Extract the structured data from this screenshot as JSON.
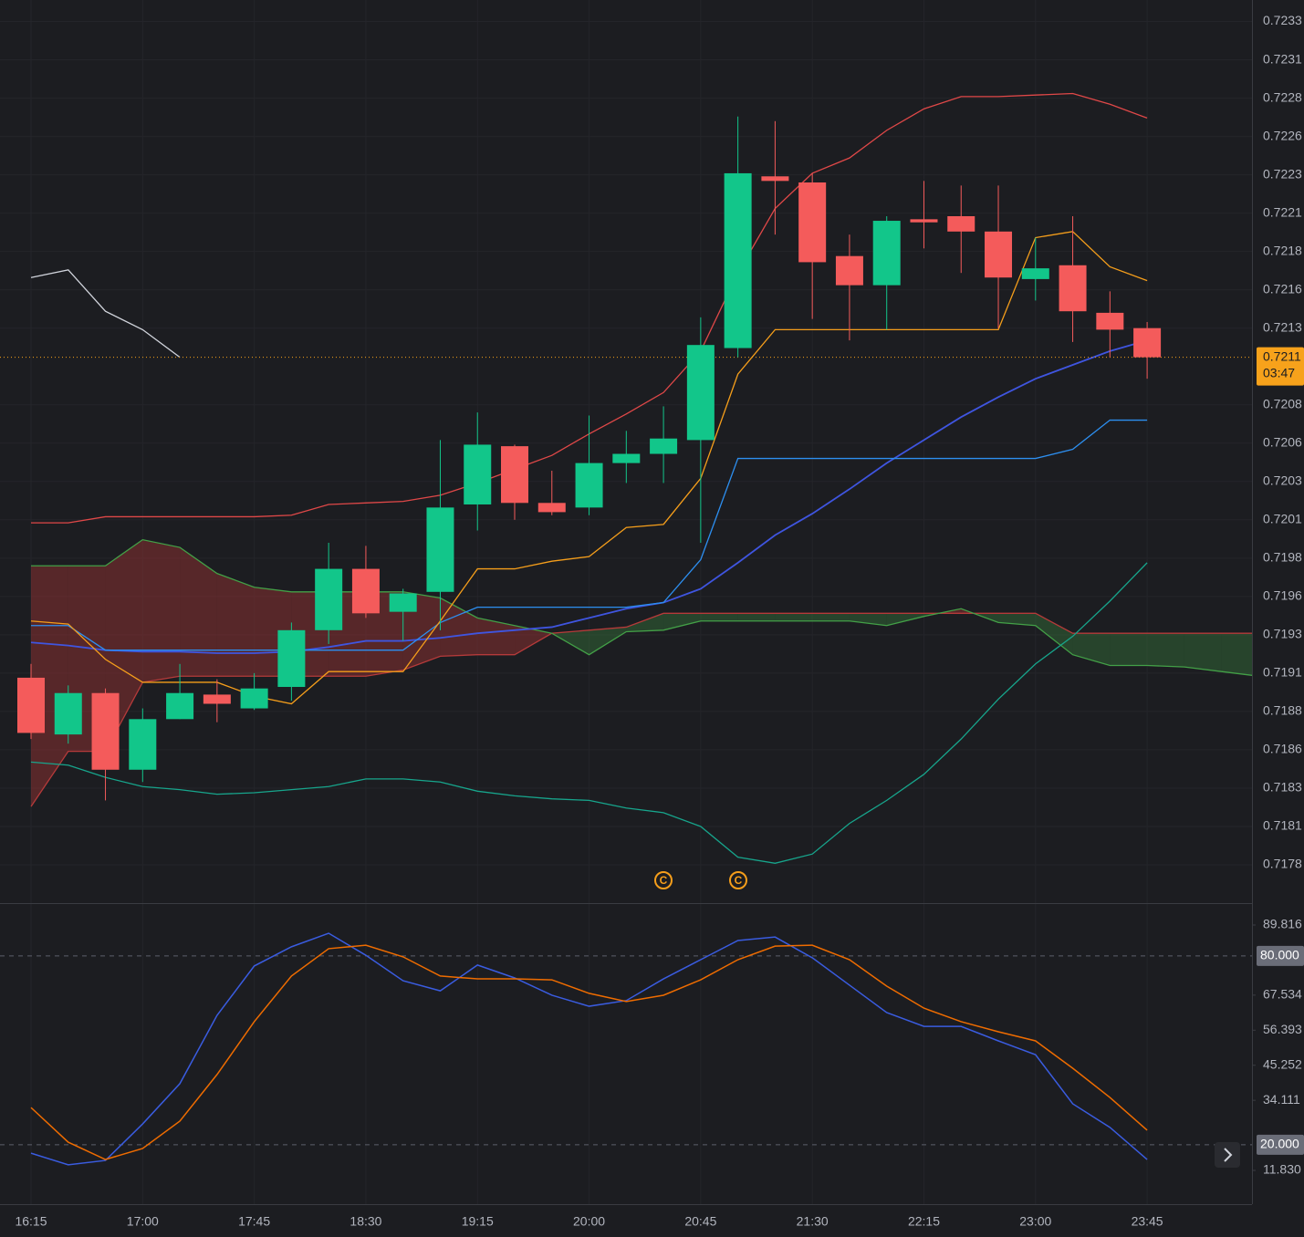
{
  "chart_data": [
    {
      "type": "candlestick",
      "categories": [
        "16:15",
        null,
        null,
        "17:00",
        null,
        null,
        "17:45",
        null,
        null,
        "18:30",
        null,
        null,
        "19:15",
        null,
        null,
        "20:00",
        null,
        null,
        "20:45",
        null,
        null,
        "21:30",
        null,
        null,
        "22:15",
        null,
        null,
        "23:00",
        null,
        null,
        "23:45",
        null,
        null,
        null
      ],
      "open": [
        0.71902,
        0.71865,
        0.71892,
        0.71842,
        0.71875,
        0.71891,
        0.71882,
        0.71896,
        0.71933,
        0.71973,
        0.71945,
        0.71958,
        0.72015,
        0.72053,
        0.72016,
        0.72013,
        0.72042,
        0.72048,
        0.72057,
        0.72117,
        0.72229,
        0.72225,
        0.72177,
        0.72158,
        0.72201,
        0.72203,
        0.72193,
        0.72162,
        0.72171,
        0.7214,
        0.7213,
        null,
        null,
        null
      ],
      "high": [
        0.71911,
        0.71897,
        0.71895,
        0.71882,
        0.71911,
        0.71901,
        0.71905,
        0.71938,
        0.7199,
        0.71988,
        0.7196,
        0.72057,
        0.72075,
        0.72054,
        0.72037,
        0.72073,
        0.72063,
        0.72079,
        0.72137,
        0.72268,
        0.72265,
        0.72231,
        0.72191,
        0.72203,
        0.72226,
        0.72223,
        0.72223,
        0.72189,
        0.72203,
        0.72154,
        0.72134,
        null,
        null,
        null
      ],
      "low": [
        0.71862,
        0.71859,
        0.71822,
        0.71834,
        0.71875,
        0.71873,
        0.71881,
        0.71887,
        0.71924,
        0.71941,
        0.71926,
        0.71933,
        0.71998,
        0.72005,
        0.72008,
        0.72008,
        0.72029,
        0.72029,
        0.7199,
        0.72111,
        0.72191,
        0.72136,
        0.72122,
        0.72129,
        0.72182,
        0.72166,
        0.7213,
        0.72148,
        0.72121,
        0.72111,
        0.72097,
        null,
        null,
        null
      ],
      "close": [
        0.71866,
        0.71892,
        0.71842,
        0.71875,
        0.71892,
        0.71885,
        0.71895,
        0.71933,
        0.71973,
        0.71944,
        0.71957,
        0.72013,
        0.72054,
        0.72016,
        0.7201,
        0.72042,
        0.72048,
        0.72058,
        0.72119,
        0.72231,
        0.72226,
        0.72173,
        0.72158,
        0.722,
        0.72199,
        0.72193,
        0.72163,
        0.72169,
        0.72141,
        0.72129,
        0.72111,
        null,
        null,
        null
      ],
      "up_color": "#12c68a",
      "down_color": "#f45b5b",
      "cloud": {
        "span_a": {
          "color": "#b53a3a",
          "values": [
            0.71818,
            0.71854,
            0.71854,
            0.71899,
            0.71903,
            0.71903,
            0.71903,
            0.71903,
            0.71903,
            0.71903,
            0.71907,
            0.71916,
            0.71917,
            0.71917,
            0.71931,
            0.71933,
            0.71935,
            0.71944,
            0.71944,
            0.71944,
            0.71944,
            0.71944,
            0.71944,
            0.71944,
            0.71944,
            0.71944,
            0.71944,
            0.71944,
            0.71931,
            0.71931,
            0.71931,
            0.71931,
            0.71931,
            0.71931
          ]
        },
        "span_b": {
          "color": "#43a047",
          "values": [
            0.71975,
            0.71975,
            0.71975,
            0.71992,
            0.71987,
            0.7197,
            0.71961,
            0.71958,
            0.71958,
            0.71958,
            0.71958,
            0.71954,
            0.71941,
            0.71936,
            0.71931,
            0.71917,
            0.71932,
            0.71933,
            0.71939,
            0.71939,
            0.71939,
            0.71939,
            0.71939,
            0.71936,
            0.71942,
            0.71947,
            0.71938,
            0.71936,
            0.71917,
            0.7191,
            0.7191,
            0.71909,
            0.71906,
            0.71903
          ]
        },
        "up_fill": "rgba(67,160,71,0.3)",
        "down_fill": "rgba(183,56,56,0.38)"
      },
      "series": [
        {
          "color": "#e04848",
          "values": [
            0.72003,
            0.72003,
            0.72007,
            0.72007,
            0.72007,
            0.72007,
            0.72007,
            0.72008,
            0.72015,
            0.72016,
            0.72017,
            0.72021,
            0.72029,
            0.72038,
            0.72047,
            0.72061,
            0.72074,
            0.72088,
            0.72115,
            0.72166,
            0.72208,
            0.72231,
            0.72241,
            0.72259,
            0.72273,
            0.72281,
            0.72281,
            0.72282,
            0.72283,
            0.72276,
            0.72267,
            null,
            null,
            null
          ]
        },
        {
          "color": "#17a58c",
          "values": [
            0.71847,
            0.71845,
            0.71837,
            0.71831,
            0.71829,
            0.71826,
            0.71827,
            0.71829,
            0.71831,
            0.71836,
            0.71836,
            0.71834,
            0.71828,
            0.71825,
            0.71823,
            0.71822,
            0.71817,
            0.71814,
            0.71805,
            0.71785,
            0.71781,
            0.71787,
            0.71807,
            0.71822,
            0.71839,
            0.71862,
            0.71888,
            0.71911,
            0.71929,
            0.71952,
            0.71977,
            null,
            null,
            null
          ]
        },
        {
          "color": "#3f55e0",
          "values": [
            0.71925,
            0.71923,
            0.7192,
            0.71919,
            0.71919,
            0.71918,
            0.71918,
            0.71919,
            0.71922,
            0.71926,
            0.71926,
            0.71928,
            0.71931,
            0.71933,
            0.71935,
            0.71941,
            0.71947,
            0.71951,
            0.7196,
            0.71977,
            0.71995,
            0.72009,
            0.72025,
            0.72042,
            0.72057,
            0.72072,
            0.72085,
            0.72097,
            0.72106,
            0.72115,
            0.72122,
            null,
            null,
            null
          ]
        },
        {
          "color": "#2d8ff0",
          "values": [
            0.71936,
            0.71936,
            0.7192,
            0.7192,
            0.7192,
            0.7192,
            0.7192,
            0.7192,
            0.7192,
            0.7192,
            0.7192,
            0.71938,
            0.71948,
            0.71948,
            0.71948,
            0.71948,
            0.71948,
            0.71951,
            0.71979,
            0.72045,
            0.72045,
            0.72045,
            0.72045,
            0.72045,
            0.72045,
            0.72045,
            0.72045,
            0.72045,
            0.72051,
            0.7207,
            0.7207,
            null,
            null,
            null
          ]
        },
        {
          "color": "#f59e1b",
          "values": [
            0.71939,
            0.71937,
            0.71914,
            0.71899,
            0.71899,
            0.71899,
            0.7189,
            0.71885,
            0.71906,
            0.71906,
            0.71906,
            0.71939,
            0.71973,
            0.71973,
            0.71978,
            0.71981,
            0.72,
            0.72002,
            0.72032,
            0.721,
            0.72129,
            0.72129,
            0.72129,
            0.72129,
            0.72129,
            0.72129,
            0.72129,
            0.72189,
            0.72193,
            0.7217,
            0.72161,
            null,
            null,
            null
          ]
        },
        {
          "color": "#d1d4dc",
          "values": [
            0.72163,
            0.72168,
            0.72141,
            0.72129,
            0.72111,
            null,
            null,
            null,
            null,
            null,
            null,
            null,
            null,
            null,
            null,
            null,
            null,
            null,
            null,
            null,
            null,
            null,
            null,
            null,
            null,
            null,
            null,
            null,
            null,
            null,
            null,
            null,
            null,
            null
          ]
        }
      ],
      "ylim": [
        0.71755,
        0.72344
      ],
      "yticks": [
        {
          "value": 0.7233,
          "label": "0.7233"
        },
        {
          "value": 0.72305,
          "label": "0.7231"
        },
        {
          "value": 0.7228,
          "label": "0.7228"
        },
        {
          "value": 0.72255,
          "label": "0.7226"
        },
        {
          "value": 0.7223,
          "label": "0.7223"
        },
        {
          "value": 0.72205,
          "label": "0.7221"
        },
        {
          "value": 0.7218,
          "label": "0.7218"
        },
        {
          "value": 0.72155,
          "label": "0.7216"
        },
        {
          "value": 0.7213,
          "label": "0.7213"
        },
        {
          "value": 0.7208,
          "label": "0.7208"
        },
        {
          "value": 0.72055,
          "label": "0.7206"
        },
        {
          "value": 0.7203,
          "label": "0.7203"
        },
        {
          "value": 0.72005,
          "label": "0.7201"
        },
        {
          "value": 0.7198,
          "label": "0.7198"
        },
        {
          "value": 0.71955,
          "label": "0.7196"
        },
        {
          "value": 0.7193,
          "label": "0.7193"
        },
        {
          "value": 0.71905,
          "label": "0.7191"
        },
        {
          "value": 0.7188,
          "label": "0.7188"
        },
        {
          "value": 0.71855,
          "label": "0.7186"
        },
        {
          "value": 0.7183,
          "label": "0.7183"
        },
        {
          "value": 0.71805,
          "label": "0.7181"
        },
        {
          "value": 0.7178,
          "label": "0.7178"
        }
      ],
      "grid": true,
      "last_price": {
        "value": 0.72111,
        "label": "0.7211",
        "color": "#f7a21b"
      },
      "countdown": "03:47",
      "event_marker": "C"
    },
    {
      "type": "line",
      "series": [
        {
          "color": "#3a5ce0",
          "values": [
            17.3,
            13.6,
            15.0,
            26.6,
            39.4,
            61.1,
            76.8,
            82.9,
            87.2,
            80.2,
            72.1,
            68.9,
            77.1,
            73.0,
            67.5,
            64.0,
            65.8,
            72.7,
            78.8,
            84.9,
            86.0,
            79.4,
            70.7,
            62.0,
            57.6,
            57.6,
            53.0,
            48.6,
            33.0,
            25.5,
            15.3,
            null,
            null,
            null
          ]
        },
        {
          "color": "#ef6c00",
          "values": [
            31.8,
            20.8,
            15.3,
            18.8,
            27.5,
            42.3,
            59.1,
            73.6,
            82.3,
            83.4,
            79.7,
            73.6,
            72.7,
            72.7,
            72.4,
            68.1,
            65.5,
            67.5,
            72.4,
            78.8,
            83.1,
            83.4,
            78.8,
            70.4,
            63.4,
            59.1,
            55.9,
            53.0,
            44.3,
            35.0,
            24.6,
            null,
            null,
            null
          ]
        }
      ],
      "ylim": [
        1.103,
        96.774
      ],
      "yticks": [
        89.816,
        67.534,
        56.393,
        45.252,
        34.111,
        {
          "value": 11.83,
          "label": "11.830"
        }
      ],
      "levels": [
        {
          "value": 80,
          "label": "80.000"
        },
        {
          "value": 20,
          "label": "20.000"
        }
      ]
    }
  ]
}
